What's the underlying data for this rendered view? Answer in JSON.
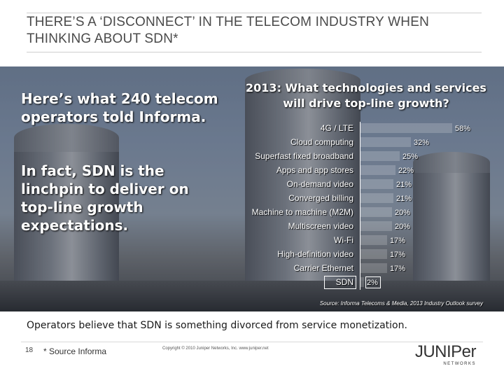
{
  "slide": {
    "title": "THERE’S A ‘DISCONNECT’ IN THE TELECOM INDUSTRY WHEN THINKING ABOUT SDN*",
    "left_heading": "Here’s what 240 telecom operators told Informa.",
    "left_body": "In fact, SDN is the linchpin to deliver on top-line growth expectations.",
    "chart_title": "2013: What technologies and services will drive top-line growth?",
    "source": "Source: Informa Telecoms & Media, 2013 Industry Outlook survey",
    "bottom_text": "Operators believe that SDN is something divorced from service monetization.",
    "page_number": "18",
    "footnote": "* Source Informa",
    "copyright": "Copyright © 2010 Juniper Networks, Inc.     www.juniper.net",
    "logo_text": "JUNIPer",
    "logo_sub": "NETWORKS"
  },
  "chart_data": {
    "type": "bar",
    "orientation": "horizontal",
    "title": "2013: What technologies and services will drive top-line growth?",
    "categories": [
      "4G / LTE",
      "Cloud computing",
      "Superfast fixed broadband",
      "Apps and app stores",
      "On-demand video",
      "Converged billing",
      "Machine to machine (M2M)",
      "Multiscreen video",
      "Wi-Fi",
      "High-definition video",
      "Carrier Ethernet",
      "SDN"
    ],
    "values": [
      58,
      32,
      25,
      22,
      21,
      21,
      20,
      20,
      17,
      17,
      17,
      2
    ],
    "value_labels": [
      "58%",
      "32%",
      "25%",
      "22%",
      "21%",
      "21%",
      "20%",
      "20%",
      "17%",
      "17%",
      "17%",
      "2%"
    ],
    "highlighted": "SDN",
    "xlim": [
      0,
      60
    ]
  }
}
